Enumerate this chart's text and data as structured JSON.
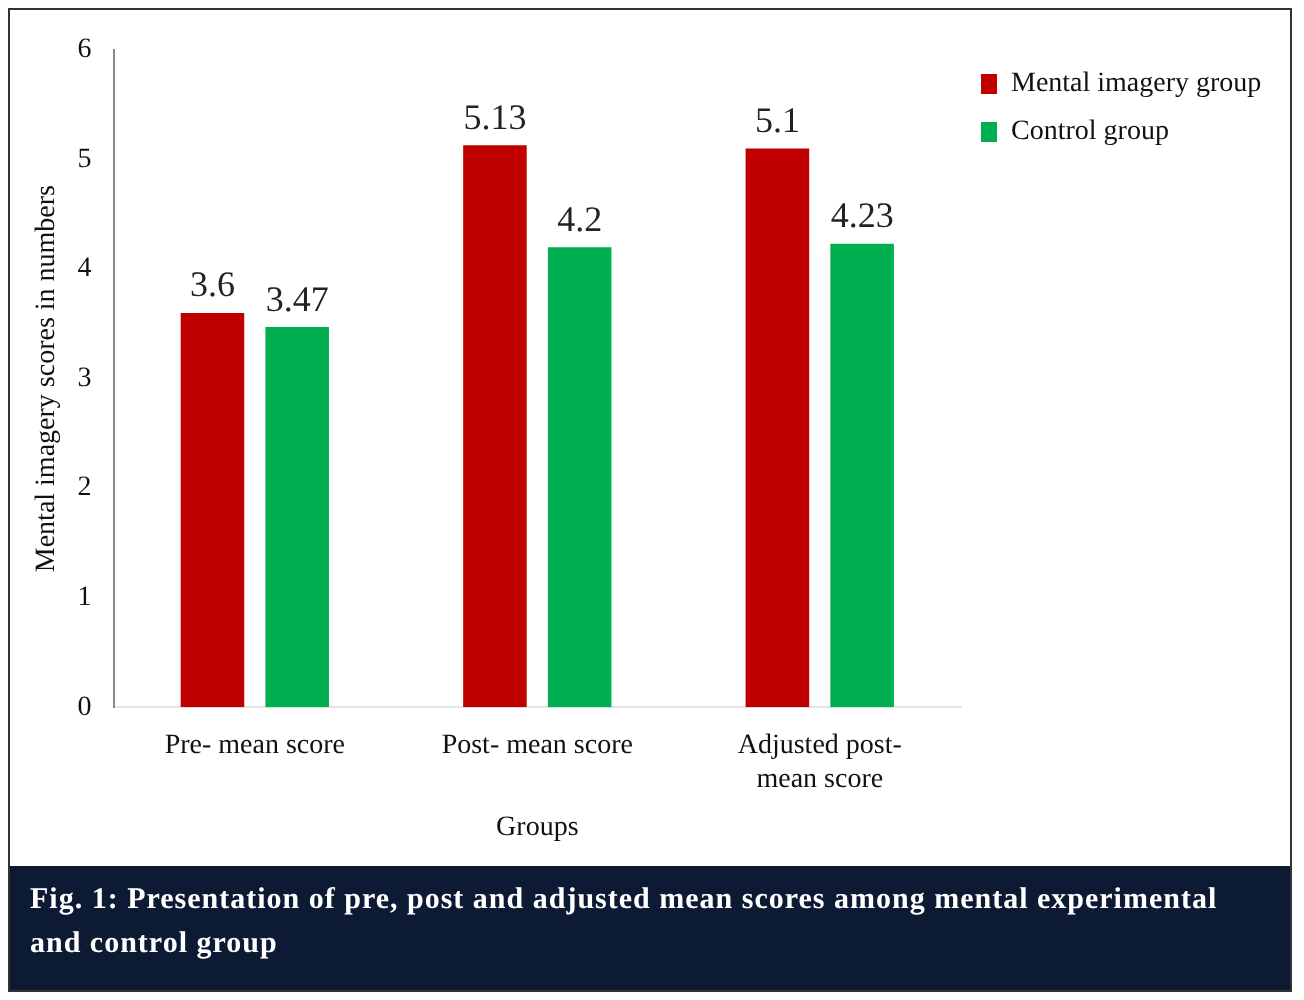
{
  "chart_data": {
    "type": "bar",
    "ylabel": "Mental imagery scores in numbers",
    "xlabel": "Groups",
    "categories": [
      "Pre- mean score",
      "Post- mean score",
      "Adjusted post- mean score"
    ],
    "series": [
      {
        "name": "Mental imagery group",
        "color": "#c00000",
        "values": [
          3.6,
          5.13,
          5.1
        ]
      },
      {
        "name": "Control group",
        "color": "#00b050",
        "values": [
          3.47,
          4.2,
          4.23
        ]
      }
    ],
    "ylim": [
      0,
      6
    ],
    "yticks": [
      0,
      1,
      2,
      3,
      4,
      5,
      6
    ],
    "grid": false,
    "legend": "top right",
    "data_labels": true,
    "annotations": [
      "Fig. 1:    Presentation of pre, post and adjusted mean scores among mental experimental and control group"
    ]
  }
}
